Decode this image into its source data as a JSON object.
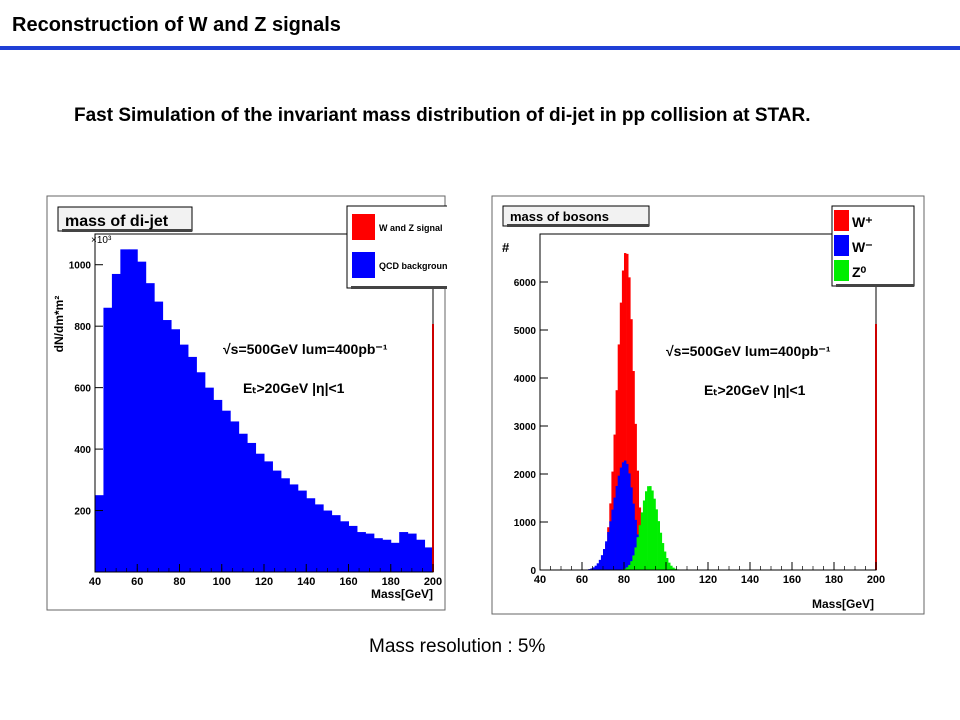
{
  "slide": {
    "title": "Reconstruction of W and Z signals",
    "subtitle": "Fast Simulation of the invariant mass distribution of di-jet in pp collision at STAR.",
    "footer": "Mass resolution : 5%"
  },
  "colors": {
    "accent_rule": "#1f3fd6",
    "red": "#ff0000",
    "blue": "#0000ff",
    "green": "#00ee00"
  },
  "chart_data": [
    {
      "type": "bar",
      "title": "mass of di-jet",
      "xlabel": "Mass[GeV]",
      "ylabel": "dN/dm*m²",
      "y_multiplier": "×10³",
      "xlim": [
        40,
        200
      ],
      "ylim": [
        0,
        1100
      ],
      "xticks": [
        "40",
        "60",
        "80",
        "100",
        "120",
        "140",
        "160",
        "180",
        "200"
      ],
      "yticks": [
        "200",
        "400",
        "600",
        "800",
        "1000"
      ],
      "stacked": true,
      "bin_edges_start": 40,
      "bin_width": 4,
      "series": [
        {
          "name": "QCD background",
          "color": "#0000ff",
          "values": [
            250,
            860,
            970,
            1050,
            1050,
            1010,
            940,
            880,
            820,
            790,
            740,
            700,
            650,
            600,
            560,
            525,
            490,
            450,
            420,
            385,
            360,
            330,
            305,
            285,
            265,
            240,
            220,
            200,
            185,
            165,
            150,
            130,
            125,
            110,
            105,
            95,
            130,
            125,
            105,
            80
          ]
        },
        {
          "name": "W and Z signal",
          "color": "#ff0000",
          "values": [
            0,
            0,
            0,
            0,
            0,
            0,
            0,
            0,
            0,
            0,
            0,
            0,
            0,
            0,
            0,
            0,
            0,
            0,
            0,
            0,
            0,
            0,
            0,
            0,
            0,
            0,
            0,
            0,
            0,
            0,
            0,
            0,
            0,
            0,
            0,
            0,
            0,
            0,
            0,
            0
          ]
        }
      ],
      "legend": [
        "W and Z signal",
        "QCD background"
      ],
      "annotations": [
        "√s=500GeV  lum=400pb⁻¹",
        "Eₜ>20GeV  |η|<1"
      ],
      "legend_position": "top-right"
    },
    {
      "type": "bar",
      "title": "mass of bosons",
      "xlabel": "Mass[GeV]",
      "ylabel": "#",
      "xlim": [
        40,
        200
      ],
      "ylim": [
        0,
        7000
      ],
      "xticks": [
        "40",
        "60",
        "80",
        "100",
        "120",
        "140",
        "160",
        "180",
        "200"
      ],
      "yticks": [
        "0",
        "1000",
        "2000",
        "3000",
        "4000",
        "5000",
        "6000"
      ],
      "series": [
        {
          "name": "W⁺",
          "color": "#ff0000"
        },
        {
          "name": "W⁻",
          "color": "#0000ff"
        },
        {
          "name": "Z⁰",
          "color": "#00ee00"
        }
      ],
      "annotations": [
        "√s=500GeV  lum=400pb⁻¹",
        "Eₜ>20GeV  |η|<1"
      ],
      "legend_position": "top-right"
    }
  ]
}
